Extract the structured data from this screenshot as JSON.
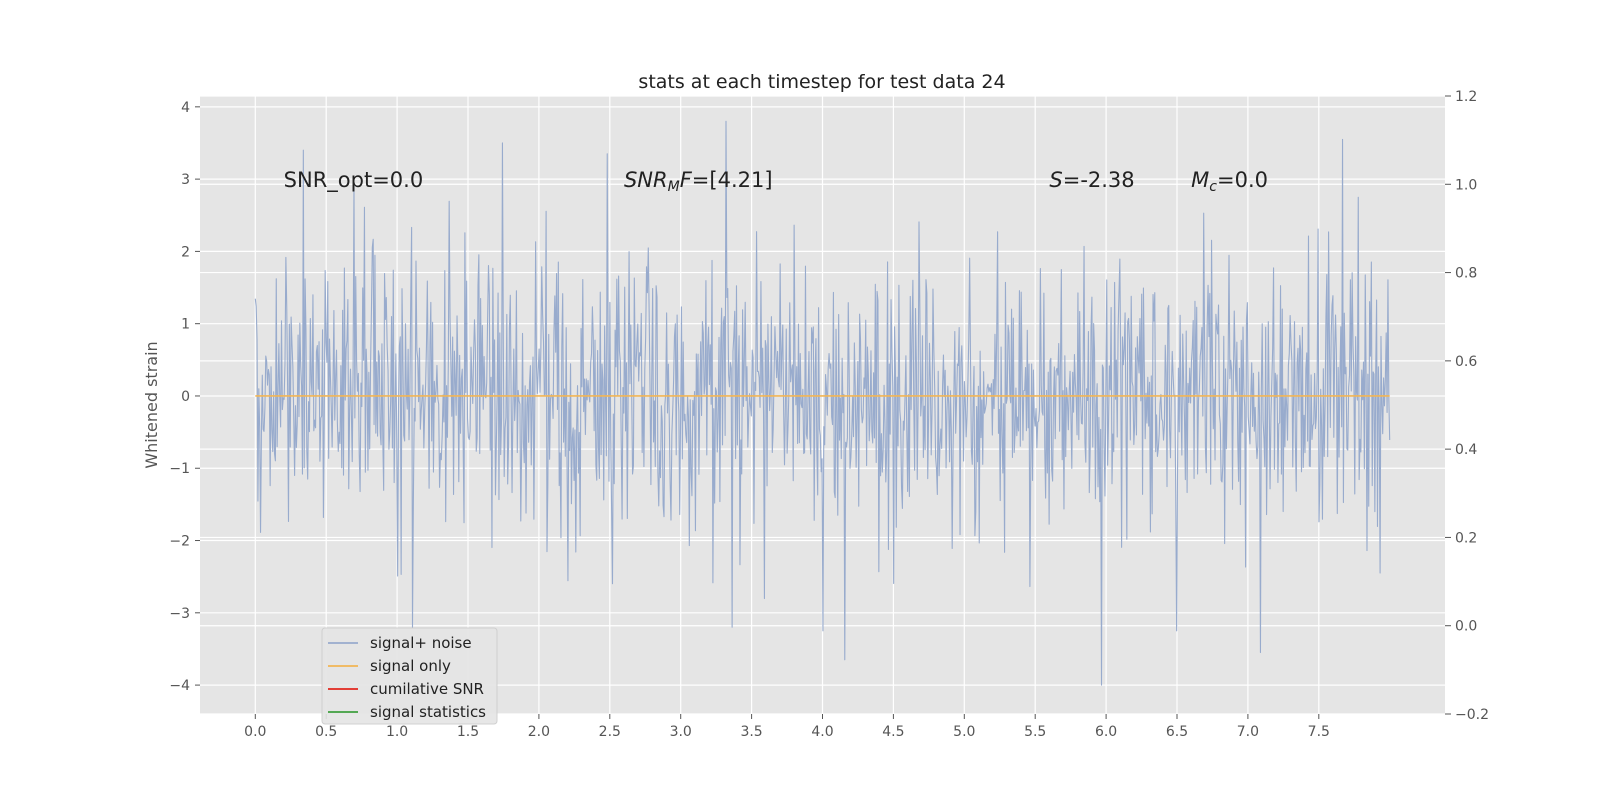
{
  "chart_data": {
    "type": "line",
    "title": "stats at each timestep for test data 24",
    "xlabel": "",
    "ylabel": "Whitened strain",
    "xlim": [
      -0.39,
      8.39
    ],
    "ylim": [
      -4.4,
      4.15
    ],
    "y2lim": [
      -0.2,
      1.2
    ],
    "xticks": [
      0.0,
      0.5,
      1.0,
      1.5,
      2.0,
      2.5,
      3.0,
      3.5,
      4.0,
      4.5,
      5.0,
      5.5,
      6.0,
      6.5,
      7.0,
      7.5
    ],
    "xtick_labels": [
      "0.0",
      "0.5",
      "1.0",
      "1.5",
      "2.0",
      "2.5",
      "3.0",
      "3.5",
      "4.0",
      "4.5",
      "5.0",
      "5.5",
      "6.0",
      "6.5",
      "7.0",
      "7.5"
    ],
    "yticks": [
      -4,
      -3,
      -2,
      -1,
      0,
      1,
      2,
      3,
      4
    ],
    "ytick_labels": [
      "−4",
      "−3",
      "−2",
      "−1",
      "0",
      "1",
      "2",
      "3",
      "4"
    ],
    "y2ticks": [
      -0.2,
      0.0,
      0.2,
      0.4,
      0.6,
      0.8,
      1.0,
      1.2
    ],
    "y2tick_labels": [
      "−0.2",
      "0.0",
      "0.2",
      "0.4",
      "0.6",
      "0.8",
      "1.0",
      "1.2"
    ],
    "grid": true,
    "legend_position": "lower-left",
    "legend": [
      "signal+ noise",
      "signal only",
      "cumilative SNR",
      "signal statistics"
    ],
    "annotations": [
      {
        "text": "SNR_opt=0.0",
        "x": 0.2,
        "y": 3.0
      },
      {
        "text_parts": [
          {
            "t": "SNR",
            "i": true
          },
          {
            "t": "M",
            "i": true,
            "sub": true
          },
          {
            "t": "F",
            "i": true
          },
          {
            "t": "=[4.21]",
            "i": false
          }
        ],
        "x": 2.6,
        "y": 3.0
      },
      {
        "text_parts": [
          {
            "t": "S",
            "i": true
          },
          {
            "t": "=-2.38",
            "i": false
          }
        ],
        "x": 5.6,
        "y": 3.0
      },
      {
        "text_parts": [
          {
            "t": "M",
            "i": true
          },
          {
            "t": "c",
            "i": true,
            "sub": true
          },
          {
            "t": "=0.0",
            "i": false
          }
        ],
        "x": 6.6,
        "y": 3.0
      }
    ],
    "series": [
      {
        "name": "signal+ noise",
        "color": "#98abcd",
        "x_range": [
          0.0,
          8.0
        ],
        "n_points": 1300,
        "seed": 24,
        "std": 0.93,
        "y_min": -4.0,
        "y_max": 3.8,
        "peaks": [
          {
            "x": 0.34,
            "y": 3.4
          },
          {
            "x": 1.74,
            "y": 3.5
          },
          {
            "x": 2.48,
            "y": 3.35
          },
          {
            "x": 3.32,
            "y": 3.8
          },
          {
            "x": 7.67,
            "y": 3.55
          },
          {
            "x": 5.97,
            "y": -4.0
          },
          {
            "x": 4.16,
            "y": -3.65
          },
          {
            "x": 7.09,
            "y": -3.55
          },
          {
            "x": 1.11,
            "y": -3.2
          },
          {
            "x": 3.36,
            "y": -3.2
          },
          {
            "x": 6.5,
            "y": -3.25
          },
          {
            "x": 4.0,
            "y": -3.25
          }
        ]
      },
      {
        "name": "signal only",
        "color": "#f2b554",
        "x": [
          0.0,
          8.0
        ],
        "y": [
          0.0,
          0.0
        ]
      },
      {
        "name": "cumilative SNR",
        "color": "#e1261c",
        "x": [],
        "y": []
      },
      {
        "name": "signal statistics",
        "color": "#3f9f3f",
        "x": [],
        "y": []
      }
    ],
    "colors": {
      "plot_background": "#e5e5e5",
      "grid": "#ffffff"
    }
  }
}
